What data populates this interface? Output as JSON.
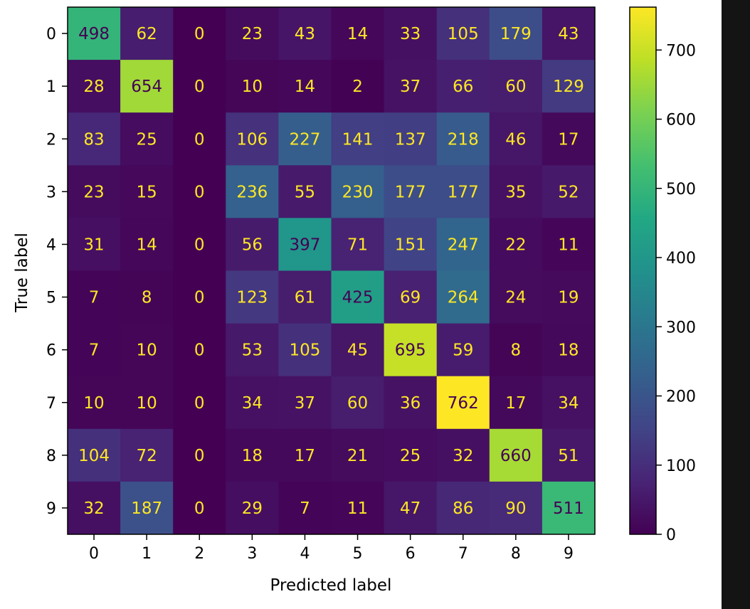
{
  "chart_data": {
    "type": "heatmap",
    "title": "",
    "xlabel": "Predicted label",
    "ylabel": "True label",
    "x_categories": [
      "0",
      "1",
      "2",
      "3",
      "4",
      "5",
      "6",
      "7",
      "8",
      "9"
    ],
    "y_categories": [
      "0",
      "1",
      "2",
      "3",
      "4",
      "5",
      "6",
      "7",
      "8",
      "9"
    ],
    "matrix": [
      [
        498,
        62,
        0,
        23,
        43,
        14,
        33,
        105,
        179,
        43
      ],
      [
        28,
        654,
        0,
        10,
        14,
        2,
        37,
        66,
        60,
        129
      ],
      [
        83,
        25,
        0,
        106,
        227,
        141,
        137,
        218,
        46,
        17
      ],
      [
        23,
        15,
        0,
        236,
        55,
        230,
        177,
        177,
        35,
        52
      ],
      [
        31,
        14,
        0,
        56,
        397,
        71,
        151,
        247,
        22,
        11
      ],
      [
        7,
        8,
        0,
        123,
        61,
        425,
        69,
        264,
        24,
        19
      ],
      [
        7,
        10,
        0,
        53,
        105,
        45,
        695,
        59,
        8,
        18
      ],
      [
        10,
        10,
        0,
        34,
        37,
        60,
        36,
        762,
        17,
        34
      ],
      [
        104,
        72,
        0,
        18,
        17,
        21,
        25,
        32,
        660,
        51
      ],
      [
        32,
        187,
        0,
        29,
        7,
        11,
        47,
        86,
        90,
        511
      ]
    ],
    "colormap": "viridis",
    "vmin": 0,
    "vmax": 762,
    "colorbar_ticks": [
      "0",
      "100",
      "200",
      "300",
      "400",
      "500",
      "600",
      "700"
    ],
    "grid": false
  }
}
